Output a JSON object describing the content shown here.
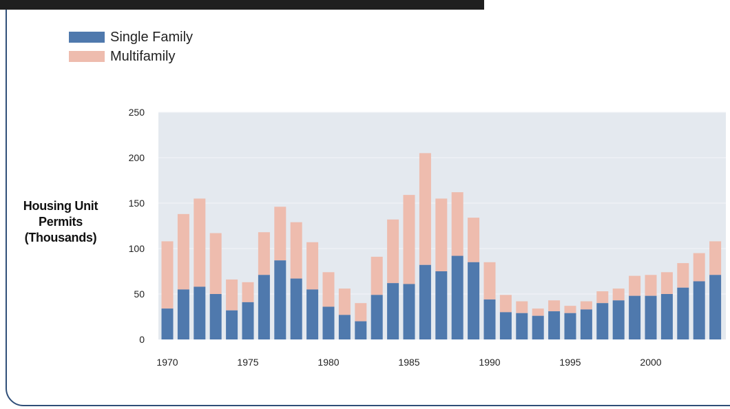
{
  "chart_data": {
    "type": "bar",
    "stacked": true,
    "ylabel": "Housing Unit Permits (Thousands)",
    "ylim": [
      0,
      250
    ],
    "yticks": [
      0,
      50,
      100,
      150,
      200,
      250
    ],
    "xticks": [
      "1970",
      "1975",
      "1980",
      "1985",
      "1990",
      "1995",
      "2000"
    ],
    "years": [
      1970,
      1971,
      1972,
      1973,
      1974,
      1975,
      1976,
      1977,
      1978,
      1979,
      1980,
      1981,
      1982,
      1983,
      1984,
      1985,
      1986,
      1987,
      1988,
      1989,
      1990,
      1991,
      1992,
      1993,
      1994,
      1995,
      1996,
      1997,
      1998,
      1999,
      2000,
      2001,
      2002,
      2003,
      2004
    ],
    "grid": true,
    "legend_position": "top-left",
    "background_color": "#e4e9ef",
    "series": [
      {
        "name": "Single Family",
        "color": "#4f79ad",
        "values": [
          34,
          55,
          58,
          50,
          32,
          41,
          71,
          87,
          67,
          55,
          36,
          27,
          20,
          49,
          62,
          61,
          82,
          75,
          92,
          85,
          44,
          30,
          29,
          26,
          31,
          29,
          33,
          40,
          43,
          48,
          48,
          50,
          57,
          64,
          71
        ]
      },
      {
        "name": "Multifamily",
        "color": "#eebcae",
        "values": [
          74,
          83,
          97,
          67,
          34,
          22,
          47,
          59,
          62,
          52,
          38,
          29,
          20,
          42,
          70,
          98,
          123,
          80,
          70,
          49,
          41,
          19,
          13,
          8,
          12,
          8,
          9,
          13,
          13,
          22,
          23,
          24,
          27,
          31,
          37
        ]
      }
    ]
  }
}
